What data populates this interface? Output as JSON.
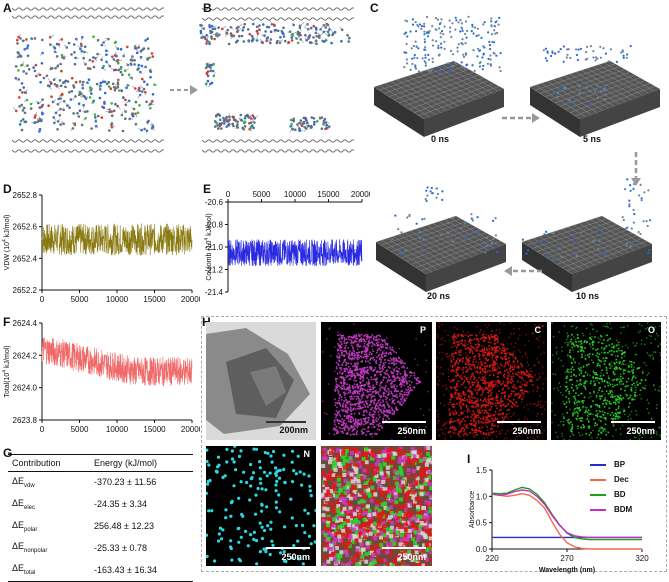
{
  "panels": {
    "A": "A",
    "B": "B",
    "C": "C",
    "D": "D",
    "E": "E",
    "F": "F",
    "G": "G",
    "H": "H",
    "I": "I"
  },
  "simulation_times": [
    "0 ns",
    "5 ns",
    "10 ns",
    "20 ns"
  ],
  "colors": {
    "vdw": "#8a7a12",
    "coulomb": "#2a2ae0",
    "total": "#f06a6a",
    "mol_c": "#3a6a8a",
    "mol_n": "#2a7ad8",
    "sheet": "#444444"
  },
  "chart_data": [
    {
      "id": "D",
      "type": "line",
      "xlabel": "",
      "ylabel": "VDW (10⁴ kJ/mol)",
      "ylabel_main": "VDW (10",
      "ylabel_exp": "4",
      "ylabel_tail": " kJ/mol)",
      "xlim": [
        0,
        20000
      ],
      "ylim": [
        2652.2,
        2652.8
      ],
      "xticks": [
        0,
        5000,
        10000,
        15000,
        20000
      ],
      "xtick_labels": [
        "0",
        "5000",
        "10000",
        "15000",
        "20000"
      ],
      "yticks": [
        2652.2,
        2652.4,
        2652.6,
        2652.8
      ],
      "ytick_labels": [
        "2652.2",
        "2652.4",
        "2652.6",
        "2652.8"
      ],
      "series": [
        {
          "name": "VDW",
          "mean": 2652.52,
          "amplitude": 0.1
        }
      ]
    },
    {
      "id": "E",
      "type": "line",
      "xlabel": "",
      "ylabel": "Coulomb (10⁴ kJ/mol)",
      "ylabel_main": "Coulomb (10",
      "ylabel_exp": "4",
      "ylabel_tail": " kJ/mol)",
      "xlim": [
        0,
        20000
      ],
      "ylim": [
        -21.4,
        -20.6
      ],
      "xticks": [
        0,
        5000,
        10000,
        15000,
        20000
      ],
      "xtick_labels": [
        "0",
        "5000",
        "10000",
        "15000",
        "20000"
      ],
      "yticks": [
        -20.6,
        -20.8,
        -21.0,
        -21.2,
        -21.4
      ],
      "ytick_labels": [
        "-20.6",
        "-20.8",
        "-21.0",
        "-21.2",
        "-21.4"
      ],
      "series": [
        {
          "name": "Coulomb",
          "mean": -21.05,
          "amplitude": 0.12
        }
      ]
    },
    {
      "id": "F",
      "type": "line",
      "xlabel": "",
      "ylabel": "Total(10⁴ kJ/mol)",
      "ylabel_main": "Total(10",
      "ylabel_exp": "4",
      "ylabel_tail": " kJ/mol)",
      "xlim": [
        0,
        20000
      ],
      "ylim": [
        2623.8,
        2624.4
      ],
      "xticks": [
        0,
        5000,
        10000,
        15000,
        20000
      ],
      "xtick_labels": [
        "0",
        "5000",
        "10000",
        "15000",
        "20000"
      ],
      "yticks": [
        2623.8,
        2624.0,
        2624.2,
        2624.4
      ],
      "ytick_labels": [
        "2623.8",
        "2624.0",
        "2624.2",
        "2624.4"
      ],
      "series": [
        {
          "name": "Total",
          "start_mean": 2624.24,
          "end_mean": 2624.1,
          "amplitude": 0.09
        }
      ]
    },
    {
      "id": "I",
      "type": "line",
      "xlabel": "Wavelength (nm)",
      "ylabel": "Absorbance",
      "xlim": [
        220,
        320
      ],
      "ylim": [
        0,
        1.5
      ],
      "xticks": [
        220,
        270,
        320
      ],
      "xtick_labels": [
        "220",
        "270",
        "320"
      ],
      "yticks": [
        0.0,
        0.5,
        1.0,
        1.5
      ],
      "ytick_labels": [
        "0.0",
        "0.5",
        "1.0",
        "1.5"
      ],
      "x": [
        220,
        225,
        230,
        235,
        240,
        245,
        250,
        255,
        260,
        265,
        270,
        275,
        280,
        285,
        290,
        300,
        310,
        320
      ],
      "series": [
        {
          "name": "BP",
          "color": "#2a2ad0",
          "values": [
            0.22,
            0.22,
            0.22,
            0.22,
            0.22,
            0.22,
            0.22,
            0.22,
            0.22,
            0.22,
            0.22,
            0.22,
            0.22,
            0.22,
            0.22,
            0.22,
            0.22,
            0.22
          ]
        },
        {
          "name": "Dec",
          "color": "#f06a4a",
          "values": [
            1.05,
            1.02,
            1.0,
            1.02,
            1.05,
            1.02,
            0.92,
            0.78,
            0.52,
            0.28,
            0.12,
            0.04,
            0.01,
            0.0,
            0.0,
            0.0,
            0.0,
            0.0
          ]
        },
        {
          "name": "BD",
          "color": "#1aa01a",
          "values": [
            1.06,
            1.05,
            1.06,
            1.12,
            1.17,
            1.14,
            1.04,
            0.88,
            0.66,
            0.46,
            0.3,
            0.22,
            0.19,
            0.18,
            0.18,
            0.18,
            0.18,
            0.18
          ]
        },
        {
          "name": "BDM",
          "color": "#c030c0",
          "values": [
            1.04,
            1.02,
            1.04,
            1.09,
            1.12,
            1.1,
            1.0,
            0.85,
            0.64,
            0.45,
            0.31,
            0.25,
            0.23,
            0.22,
            0.22,
            0.22,
            0.22,
            0.22
          ]
        }
      ]
    }
  ],
  "energy_table": {
    "header": {
      "contribution": "Contribution",
      "energy": "Energy (kJ/mol)"
    },
    "rows": [
      {
        "sym": "ΔE",
        "sub": "vdw",
        "value": "-370.23 ± 11.56"
      },
      {
        "sym": "ΔE",
        "sub": "elec",
        "value": "-24.35 ± 3.34"
      },
      {
        "sym": "ΔE",
        "sub": "polar",
        "value": "256.48 ± 12.23"
      },
      {
        "sym": "ΔE",
        "sub": "nonpolar",
        "value": "-25.33 ± 0.78"
      },
      {
        "sym": "ΔE",
        "sub": "total",
        "value": "-163.43 ± 16.34"
      }
    ]
  },
  "eds": {
    "tem_scale": "200nm",
    "maps": [
      {
        "element": "P",
        "scale": "250nm",
        "color": "#c83cc8",
        "label_color": "#ffffff"
      },
      {
        "element": "C",
        "scale": "250nm",
        "color": "#e01818",
        "label_color": "#ffffff"
      },
      {
        "element": "O",
        "scale": "250nm",
        "color": "#2ad82a",
        "label_color": "#ffffff"
      },
      {
        "element": "N",
        "scale": "250nm",
        "color": "#2ad8e0",
        "label_color": "#ffffff"
      }
    ],
    "overlay_scale": "250nm"
  }
}
